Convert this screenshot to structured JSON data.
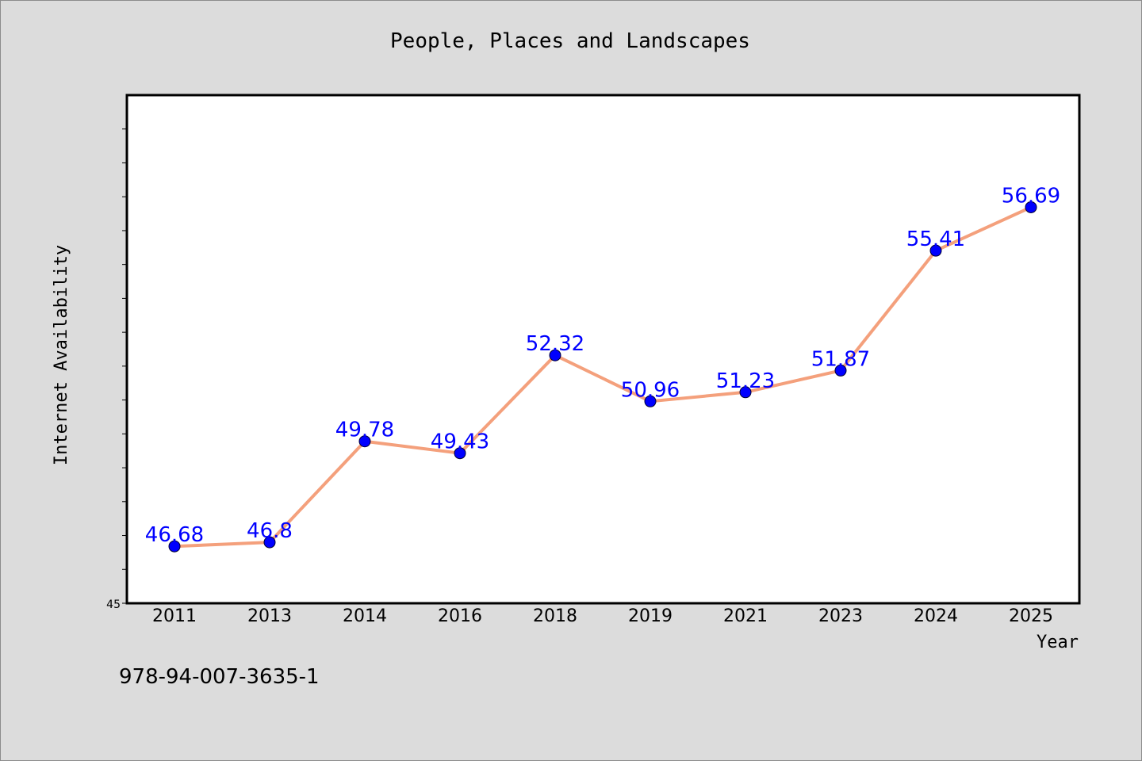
{
  "chart_data": {
    "type": "line",
    "title": "People, Places and Landscapes",
    "xlabel": "Year",
    "ylabel": "Internet Availability",
    "categories": [
      "2011",
      "2013",
      "2014",
      "2016",
      "2018",
      "2019",
      "2021",
      "2023",
      "2024",
      "2025"
    ],
    "values": [
      46.68,
      46.8,
      49.78,
      49.43,
      52.32,
      50.96,
      51.23,
      51.87,
      55.41,
      56.69
    ],
    "data_labels": [
      "46.68",
      "46.8",
      "49.78",
      "49.43",
      "52.32",
      "50.96",
      "51.23",
      "51.87",
      "55.41",
      "56.69"
    ],
    "ylim": [
      45,
      60
    ],
    "y_tick_labels": [
      "45"
    ],
    "grid": false,
    "legend": "none",
    "colors": {
      "line": "#f4a07c",
      "marker": "#0000ff",
      "data_label": "#0000ff",
      "background": "#dcdcdc",
      "plot_background": "#ffffff"
    }
  },
  "isbn_text": "978-94-007-3635-1"
}
